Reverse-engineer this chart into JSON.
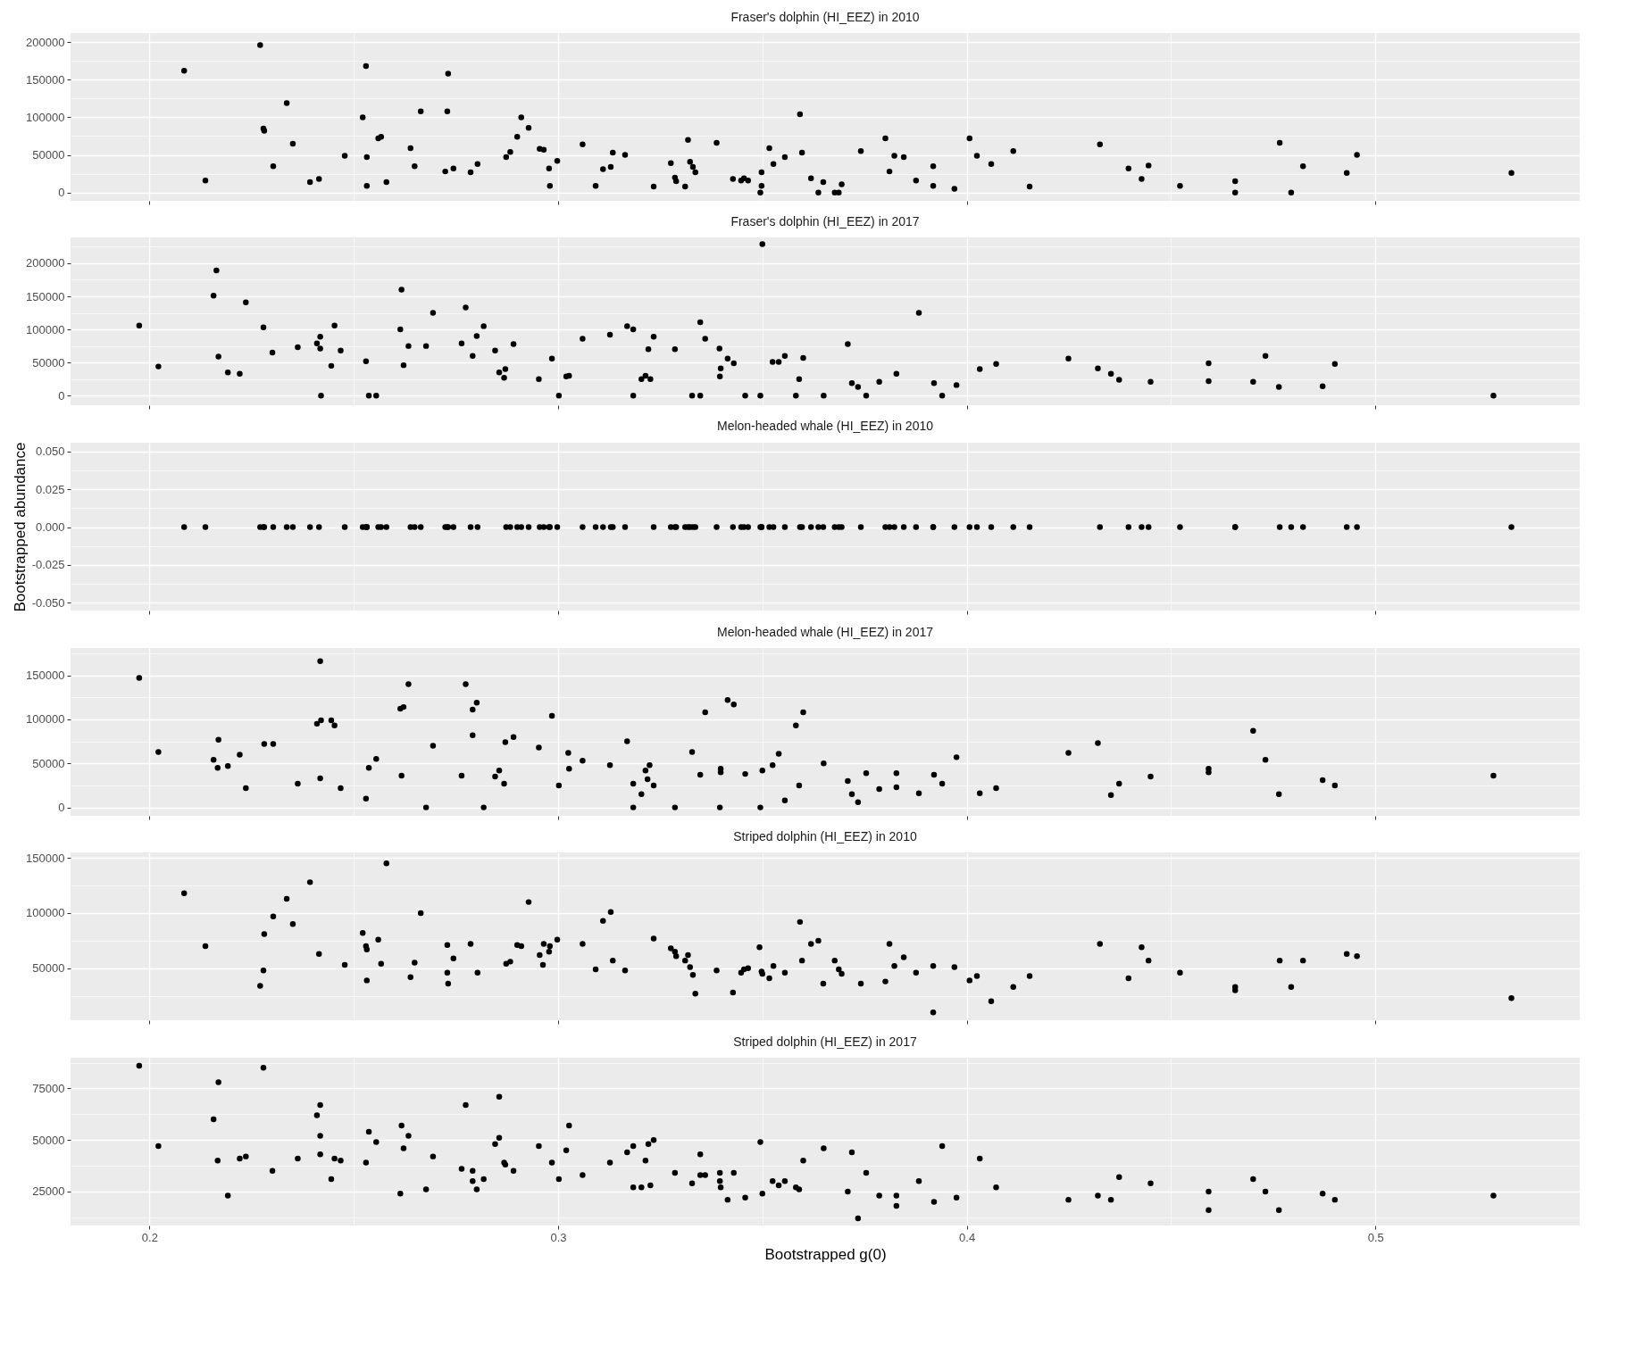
{
  "chart_data": [
    {
      "type": "scatter",
      "title": "Fraser's dolphin (HI_EEZ) in 2010",
      "color": "#000000",
      "marker": "circle",
      "grid": true,
      "tick_labels": "y",
      "xlim": [
        0.1807,
        0.55
      ],
      "xticks": [
        0.2,
        {
          "value": 0.25,
          "label": null
        },
        0.3,
        {
          "value": 0.35,
          "label": null
        },
        0.4,
        {
          "value": 0.45,
          "label": null
        },
        0.5
      ],
      "ylim": [
        -11000,
        212000
      ],
      "yticks": [
        0,
        {
          "value": 25000,
          "label": null
        },
        50000,
        {
          "value": 75000,
          "label": null
        },
        100000,
        {
          "value": 125000,
          "label": null
        },
        150000,
        {
          "value": 175000,
          "label": null
        },
        200000
      ],
      "x": [
        0.2085,
        0.2137,
        0.2271,
        0.2279,
        0.2281,
        0.2303,
        0.2336,
        0.2351,
        0.2393,
        0.2415,
        0.2478,
        0.2522,
        0.253,
        0.2532,
        0.2532,
        0.256,
        0.2567,
        0.258,
        0.2639,
        0.2649,
        0.2664,
        0.2729,
        0.2731,
        0.2724,
        0.2744,
        0.2786,
        0.2803,
        0.2873,
        0.2883,
        0.29,
        0.291,
        0.2928,
        0.2955,
        0.2965,
        0.2978,
        0.298,
        0.2998,
        0.306,
        0.3092,
        0.311,
        0.3129,
        0.3134,
        0.3164,
        0.3234,
        0.3276,
        0.3286,
        0.3289,
        0.3311,
        0.3318,
        0.3323,
        0.333,
        0.3336,
        0.3388,
        0.3428,
        0.3448,
        0.3455,
        0.3465,
        0.3498,
        0.3498,
        0.3495,
        0.3517,
        0.3527,
        0.3555,
        0.3592,
        0.3597,
        0.3619,
        0.3637,
        0.3649,
        0.3677,
        0.3687,
        0.3694,
        0.3741,
        0.3801,
        0.3811,
        0.3823,
        0.3846,
        0.3876,
        0.3918,
        0.3918,
        0.397,
        0.4007,
        0.4025,
        0.406,
        0.4114,
        0.4154,
        0.4326,
        0.4396,
        0.4428,
        0.4445,
        0.4522,
        0.4657,
        0.4657,
        0.4766,
        0.4794,
        0.4823,
        0.493,
        0.4955,
        0.5333
      ],
      "values": [
        162000,
        16000,
        196000,
        85000,
        82000,
        35000,
        119000,
        65000,
        14000,
        18000,
        49000,
        100000,
        168000,
        47000,
        9000,
        72000,
        74000,
        14000,
        59000,
        35000,
        108000,
        108000,
        158000,
        28000,
        32000,
        27000,
        38000,
        47000,
        54000,
        74000,
        100000,
        86000,
        58000,
        57000,
        32000,
        9000,
        42000,
        64000,
        9000,
        31000,
        34000,
        53000,
        50000,
        8000,
        39000,
        20000,
        15000,
        8000,
        70000,
        41000,
        34000,
        27000,
        66000,
        18000,
        16000,
        19000,
        16000,
        27000,
        9000,
        0,
        59000,
        38000,
        47000,
        104000,
        53000,
        19000,
        0,
        14000,
        0,
        0,
        11000,
        55000,
        72000,
        28000,
        49000,
        47000,
        16000,
        35000,
        9000,
        5000,
        72000,
        49000,
        38000,
        55000,
        8000,
        64000,
        32000,
        18000,
        36000,
        9000,
        15000,
        0,
        66000,
        0,
        35000,
        26000,
        50000,
        26000
      ]
    },
    {
      "type": "scatter",
      "title": "Fraser's dolphin (HI_EEZ) in 2017",
      "color": "#000000",
      "marker": "circle",
      "grid": true,
      "tick_labels": "y",
      "xlim": [
        0.1807,
        0.55
      ],
      "xticks": [
        0.2,
        {
          "value": 0.25,
          "label": null
        },
        0.3,
        {
          "value": 0.35,
          "label": null
        },
        0.4,
        {
          "value": 0.45,
          "label": null
        },
        0.5
      ],
      "ylim": [
        -14500,
        239000
      ],
      "yticks": [
        0,
        {
          "value": 25000,
          "label": null
        },
        50000,
        {
          "value": 75000,
          "label": null
        },
        100000,
        {
          "value": 125000,
          "label": null
        },
        150000,
        {
          "value": 175000,
          "label": null
        },
        200000,
        {
          "value": 225000,
          "label": null
        }
      ],
      "x": [
        0.1975,
        0.2022,
        0.2157,
        0.2164,
        0.2169,
        0.2192,
        0.2221,
        0.2236,
        0.2279,
        0.2301,
        0.2363,
        0.241,
        0.2418,
        0.2418,
        0.242,
        0.2445,
        0.2453,
        0.2468,
        0.253,
        0.2537,
        0.2555,
        0.2617,
        0.2614,
        0.2622,
        0.2634,
        0.2677,
        0.2694,
        0.2764,
        0.2774,
        0.2791,
        0.2801,
        0.2818,
        0.2846,
        0.2856,
        0.2871,
        0.2868,
        0.2891,
        0.2953,
        0.2985,
        0.3002,
        0.302,
        0.3027,
        0.306,
        0.3127,
        0.3169,
        0.3184,
        0.3184,
        0.3204,
        0.3214,
        0.3226,
        0.3221,
        0.3234,
        0.3286,
        0.3328,
        0.3348,
        0.3348,
        0.336,
        0.3395,
        0.3398,
        0.3396,
        0.3415,
        0.343,
        0.3458,
        0.3495,
        0.35,
        0.3525,
        0.354,
        0.3555,
        0.3582,
        0.359,
        0.36,
        0.365,
        0.3709,
        0.3719,
        0.3734,
        0.3754,
        0.3786,
        0.3828,
        0.3883,
        0.392,
        0.394,
        0.3975,
        0.4032,
        0.4072,
        0.4249,
        0.4321,
        0.4353,
        0.4373,
        0.445,
        0.4592,
        0.4592,
        0.4701,
        0.4731,
        0.4764,
        0.4871,
        0.4901,
        0.5289
      ],
      "values": [
        106000,
        44000,
        151000,
        189000,
        59000,
        35000,
        33000,
        141000,
        103000,
        65000,
        73000,
        79000,
        89000,
        71000,
        0,
        45000,
        106000,
        68000,
        52000,
        0,
        0,
        160000,
        100000,
        46000,
        75000,
        75000,
        125000,
        79000,
        133000,
        60000,
        90000,
        105000,
        68000,
        35000,
        40000,
        27000,
        78000,
        25000,
        56000,
        0,
        29000,
        30000,
        86000,
        92000,
        105000,
        100000,
        0,
        25000,
        30000,
        25000,
        70000,
        89000,
        70000,
        0,
        0,
        111000,
        86000,
        71000,
        41000,
        29000,
        56000,
        49000,
        0,
        0,
        229000,
        51000,
        51000,
        60000,
        0,
        25000,
        57000,
        0,
        78000,
        19000,
        13000,
        0,
        21000,
        33000,
        125000,
        19000,
        0,
        16000,
        40000,
        48000,
        56000,
        41000,
        33000,
        24000,
        21000,
        49000,
        22000,
        21000,
        60000,
        13000,
        14000,
        48000,
        0
      ]
    },
    {
      "type": "scatter",
      "title": "Melon-headed whale (HI_EEZ) in 2010",
      "ylabel": "Bootstrapped abundance",
      "color": "#000000",
      "marker": "circle",
      "grid": true,
      "tick_labels": "y",
      "xlim": [
        0.1807,
        0.55
      ],
      "xticks": [
        0.2,
        {
          "value": 0.25,
          "label": null
        },
        0.3,
        {
          "value": 0.35,
          "label": null
        },
        0.4,
        {
          "value": 0.45,
          "label": null
        },
        0.5
      ],
      "ylim": [
        -0.0552,
        0.0559
      ],
      "yticks": [
        {
          "value": -0.05,
          "label": "-0.050"
        },
        {
          "value": -0.0375,
          "label": null
        },
        {
          "value": -0.025,
          "label": "-0.025"
        },
        {
          "value": -0.0125,
          "label": null
        },
        {
          "value": 0,
          "label": "0.000"
        },
        {
          "value": 0.0125,
          "label": null
        },
        {
          "value": 0.025,
          "label": "0.025"
        },
        {
          "value": 0.0375,
          "label": null
        },
        {
          "value": 0.05,
          "label": "0.050"
        }
      ],
      "x": [
        0.2085,
        0.2137,
        0.2271,
        0.2279,
        0.2281,
        0.2303,
        0.2336,
        0.2351,
        0.2393,
        0.2415,
        0.2478,
        0.2522,
        0.253,
        0.2532,
        0.2532,
        0.256,
        0.2567,
        0.258,
        0.2639,
        0.2649,
        0.2664,
        0.2729,
        0.2731,
        0.2724,
        0.2744,
        0.2786,
        0.2803,
        0.2873,
        0.2883,
        0.29,
        0.291,
        0.2928,
        0.2955,
        0.2965,
        0.2978,
        0.298,
        0.2998,
        0.306,
        0.3092,
        0.311,
        0.3129,
        0.3134,
        0.3164,
        0.3234,
        0.3276,
        0.3286,
        0.3289,
        0.3311,
        0.3318,
        0.3323,
        0.333,
        0.3336,
        0.3388,
        0.3428,
        0.3448,
        0.3455,
        0.3465,
        0.3498,
        0.3498,
        0.3495,
        0.3517,
        0.3527,
        0.3555,
        0.3592,
        0.3597,
        0.3619,
        0.3637,
        0.3649,
        0.3677,
        0.3687,
        0.3694,
        0.3741,
        0.3801,
        0.3811,
        0.3823,
        0.3846,
        0.3876,
        0.3918,
        0.3918,
        0.397,
        0.4007,
        0.4025,
        0.406,
        0.4114,
        0.4154,
        0.4326,
        0.4396,
        0.4428,
        0.4445,
        0.4522,
        0.4657,
        0.4657,
        0.4766,
        0.4794,
        0.4823,
        0.493,
        0.4955,
        0.5333
      ],
      "values": [
        0,
        0,
        0,
        0,
        0,
        0,
        0,
        0,
        0,
        0,
        0,
        0,
        0,
        0,
        0,
        0,
        0,
        0,
        0,
        0,
        0,
        0,
        0,
        0,
        0,
        0,
        0,
        0,
        0,
        0,
        0,
        0,
        0,
        0,
        0,
        0,
        0,
        0,
        0,
        0,
        0,
        0,
        0,
        0,
        0,
        0,
        0,
        0,
        0,
        0,
        0,
        0,
        0,
        0,
        0,
        0,
        0,
        0,
        0,
        0,
        0,
        0,
        0,
        0,
        0,
        0,
        0,
        0,
        0,
        0,
        0,
        0,
        0,
        0,
        0,
        0,
        0,
        0,
        0,
        0,
        0,
        0,
        0,
        0,
        0,
        0,
        0,
        0,
        0,
        0,
        0,
        0,
        0,
        0,
        0,
        0,
        0,
        0
      ]
    },
    {
      "type": "scatter",
      "title": "Melon-headed whale (HI_EEZ) in 2017",
      "color": "#000000",
      "marker": "circle",
      "grid": true,
      "tick_labels": "y",
      "xlim": [
        0.1807,
        0.55
      ],
      "xticks": [
        0.2,
        {
          "value": 0.25,
          "label": null
        },
        0.3,
        {
          "value": 0.35,
          "label": null
        },
        0.4,
        {
          "value": 0.45,
          "label": null
        },
        0.5
      ],
      "ylim": [
        -9500,
        181000
      ],
      "yticks": [
        0,
        {
          "value": 25000,
          "label": null
        },
        50000,
        {
          "value": 75000,
          "label": null
        },
        100000,
        {
          "value": 125000,
          "label": null
        },
        150000,
        {
          "value": 175000,
          "label": null
        }
      ],
      "x": [
        0.1975,
        0.2022,
        0.2157,
        0.2169,
        0.2167,
        0.2192,
        0.2221,
        0.2236,
        0.2281,
        0.2303,
        0.2363,
        0.2418,
        0.241,
        0.242,
        0.2445,
        0.2453,
        0.2468,
        0.2418,
        0.253,
        0.2537,
        0.2555,
        0.2614,
        0.2622,
        0.2617,
        0.2634,
        0.2677,
        0.2694,
        0.2764,
        0.2774,
        0.2791,
        0.2801,
        0.2791,
        0.2818,
        0.2846,
        0.2856,
        0.2871,
        0.2868,
        0.2891,
        0.2953,
        0.2985,
        0.3002,
        0.3025,
        0.3027,
        0.306,
        0.3127,
        0.3169,
        0.3184,
        0.3184,
        0.3204,
        0.3214,
        0.3224,
        0.3219,
        0.3234,
        0.3286,
        0.3328,
        0.3348,
        0.336,
        0.3396,
        0.3398,
        0.3398,
        0.3415,
        0.343,
        0.3458,
        0.3495,
        0.35,
        0.3525,
        0.354,
        0.3555,
        0.3582,
        0.359,
        0.36,
        0.365,
        0.3709,
        0.3719,
        0.3734,
        0.3754,
        0.3786,
        0.3828,
        0.3828,
        0.3883,
        0.392,
        0.394,
        0.3975,
        0.4032,
        0.4072,
        0.4249,
        0.4321,
        0.4353,
        0.4373,
        0.445,
        0.4592,
        0.4592,
        0.4701,
        0.4731,
        0.4764,
        0.4871,
        0.4901,
        0.5289
      ],
      "values": [
        147000,
        63000,
        54000,
        77000,
        45000,
        47000,
        60000,
        22000,
        72000,
        72000,
        27000,
        166000,
        95000,
        99000,
        99000,
        93000,
        22000,
        33000,
        10000,
        45000,
        55000,
        112000,
        114000,
        36000,
        140000,
        0,
        70000,
        36000,
        140000,
        111000,
        119000,
        82000,
        0,
        35000,
        42000,
        74000,
        27000,
        80000,
        68000,
        104000,
        25000,
        62000,
        44000,
        53000,
        48000,
        75000,
        0,
        27000,
        15000,
        42000,
        48000,
        32000,
        25000,
        0,
        63000,
        37000,
        108000,
        0,
        40000,
        44000,
        122000,
        117000,
        38000,
        0,
        42000,
        48000,
        61000,
        8000,
        93000,
        25000,
        108000,
        50000,
        30000,
        15000,
        6000,
        39000,
        21000,
        39000,
        23000,
        16000,
        37000,
        27000,
        57000,
        16000,
        22000,
        62000,
        73000,
        14000,
        27000,
        35000,
        40000,
        44000,
        87000,
        54000,
        15000,
        31000,
        25000,
        36000
      ]
    },
    {
      "type": "scatter",
      "title": "Striped dolphin (HI_EEZ) in 2010",
      "color": "#000000",
      "marker": "circle",
      "grid": true,
      "tick_labels": "y",
      "xlim": [
        0.1807,
        0.55
      ],
      "xticks": [
        0.2,
        {
          "value": 0.25,
          "label": null
        },
        0.3,
        {
          "value": 0.35,
          "label": null
        },
        0.4,
        {
          "value": 0.45,
          "label": null
        },
        0.5
      ],
      "ylim": [
        2900,
        155000
      ],
      "yticks": [
        {
          "value": 25000,
          "label": null
        },
        50000,
        {
          "value": 75000,
          "label": null
        },
        100000,
        {
          "value": 125000,
          "label": null
        },
        150000
      ],
      "x": [
        0.2085,
        0.2137,
        0.2271,
        0.2279,
        0.2281,
        0.2303,
        0.2336,
        0.2351,
        0.2393,
        0.2415,
        0.2478,
        0.2522,
        0.253,
        0.2532,
        0.2532,
        0.256,
        0.2567,
        0.258,
        0.2639,
        0.2649,
        0.2664,
        0.2729,
        0.2729,
        0.2731,
        0.2744,
        0.2786,
        0.2803,
        0.2873,
        0.2883,
        0.29,
        0.291,
        0.2928,
        0.2955,
        0.2965,
        0.2963,
        0.2978,
        0.298,
        0.2998,
        0.306,
        0.3092,
        0.311,
        0.3129,
        0.3134,
        0.3164,
        0.3234,
        0.3276,
        0.3286,
        0.3289,
        0.3311,
        0.3318,
        0.3323,
        0.333,
        0.3336,
        0.3388,
        0.3428,
        0.3448,
        0.3455,
        0.3465,
        0.3493,
        0.3498,
        0.35,
        0.3517,
        0.3527,
        0.3555,
        0.3592,
        0.3597,
        0.3619,
        0.3637,
        0.3649,
        0.3677,
        0.3687,
        0.3694,
        0.3741,
        0.3801,
        0.3811,
        0.3823,
        0.3846,
        0.3876,
        0.3918,
        0.3918,
        0.397,
        0.4007,
        0.4025,
        0.406,
        0.4114,
        0.4154,
        0.4326,
        0.4396,
        0.4428,
        0.4445,
        0.4522,
        0.4657,
        0.4657,
        0.4766,
        0.4794,
        0.4823,
        0.493,
        0.4955,
        0.5333
      ],
      "values": [
        118000,
        70000,
        34000,
        48000,
        81000,
        97000,
        113000,
        90000,
        128000,
        63000,
        53000,
        82000,
        70000,
        67000,
        39000,
        76000,
        54000,
        145000,
        42000,
        55000,
        100000,
        71000,
        46000,
        36000,
        59000,
        72000,
        46000,
        54000,
        56000,
        71000,
        70000,
        110000,
        62000,
        72000,
        53000,
        65000,
        70000,
        76000,
        72000,
        49000,
        93000,
        101000,
        57000,
        48000,
        77000,
        68000,
        65000,
        61000,
        57000,
        62000,
        51000,
        44000,
        27000,
        48000,
        28000,
        46000,
        49000,
        50000,
        69000,
        47000,
        45000,
        41000,
        52000,
        46000,
        92000,
        57000,
        72000,
        75000,
        36000,
        57000,
        49000,
        45000,
        36000,
        38000,
        72000,
        52000,
        60000,
        46000,
        52000,
        10000,
        51000,
        39000,
        43000,
        20000,
        33000,
        43000,
        72000,
        41000,
        69000,
        57000,
        46000,
        33000,
        30000,
        57000,
        33000,
        57000,
        63000,
        61000,
        23000
      ]
    },
    {
      "type": "scatter",
      "title": "Striped dolphin (HI_EEZ) in 2017",
      "xlabel": "Bootstrapped g(0)",
      "color": "#000000",
      "marker": "circle",
      "grid": true,
      "xlim": [
        0.1807,
        0.55
      ],
      "xticks": [
        0.2,
        {
          "value": 0.25,
          "label": null
        },
        0.3,
        {
          "value": 0.35,
          "label": null
        },
        0.4,
        {
          "value": 0.45,
          "label": null
        },
        0.5
      ],
      "ylim": [
        8500,
        89900
      ],
      "yticks": [
        {
          "value": 12500,
          "label": null
        },
        25000,
        {
          "value": 37500,
          "label": null
        },
        50000,
        {
          "value": 62500,
          "label": null
        },
        75000,
        {
          "value": 87500,
          "label": null
        }
      ],
      "x": [
        0.1975,
        0.2022,
        0.2157,
        0.2169,
        0.2167,
        0.2192,
        0.2221,
        0.2236,
        0.2279,
        0.2301,
        0.2363,
        0.241,
        0.2418,
        0.2418,
        0.2418,
        0.2445,
        0.2453,
        0.2468,
        0.253,
        0.2537,
        0.2555,
        0.2617,
        0.2614,
        0.2622,
        0.2634,
        0.2677,
        0.2694,
        0.2764,
        0.2774,
        0.2791,
        0.2791,
        0.2801,
        0.2818,
        0.2846,
        0.2856,
        0.2856,
        0.2868,
        0.2871,
        0.2891,
        0.2953,
        0.2985,
        0.3002,
        0.302,
        0.3027,
        0.306,
        0.3127,
        0.3169,
        0.3184,
        0.3184,
        0.3204,
        0.3214,
        0.3221,
        0.3226,
        0.3234,
        0.3286,
        0.3328,
        0.3348,
        0.3348,
        0.336,
        0.3396,
        0.3396,
        0.3398,
        0.3415,
        0.343,
        0.3458,
        0.3495,
        0.35,
        0.3525,
        0.354,
        0.3555,
        0.3582,
        0.359,
        0.36,
        0.365,
        0.3709,
        0.3719,
        0.3734,
        0.3754,
        0.3786,
        0.3828,
        0.3828,
        0.3883,
        0.392,
        0.394,
        0.3975,
        0.4032,
        0.4072,
        0.4249,
        0.4321,
        0.4353,
        0.4373,
        0.445,
        0.4592,
        0.4592,
        0.4701,
        0.4731,
        0.4764,
        0.4871,
        0.4901,
        0.5289
      ],
      "values": [
        86000,
        47000,
        60000,
        78000,
        40000,
        23000,
        41000,
        42000,
        85000,
        35000,
        41000,
        62000,
        67000,
        52000,
        43000,
        31000,
        41000,
        40000,
        39000,
        54000,
        49000,
        57000,
        24000,
        46000,
        52000,
        26000,
        42000,
        36000,
        67000,
        35000,
        30000,
        26000,
        31000,
        48000,
        71000,
        51000,
        39000,
        38000,
        35000,
        47000,
        39000,
        31000,
        45000,
        57000,
        33000,
        39000,
        44000,
        47000,
        27000,
        27000,
        40000,
        48000,
        28000,
        50000,
        34000,
        29000,
        43000,
        33000,
        33000,
        34000,
        30000,
        27000,
        21000,
        34000,
        22000,
        49000,
        24000,
        30000,
        28000,
        30000,
        27000,
        26000,
        40000,
        46000,
        25000,
        44000,
        12000,
        34000,
        23000,
        23000,
        18000,
        30000,
        20000,
        47000,
        22000,
        41000,
        27000,
        21000,
        23000,
        21000,
        32000,
        29000,
        25000,
        16000,
        31000,
        25000,
        16000,
        24000,
        21000,
        23000
      ]
    }
  ]
}
